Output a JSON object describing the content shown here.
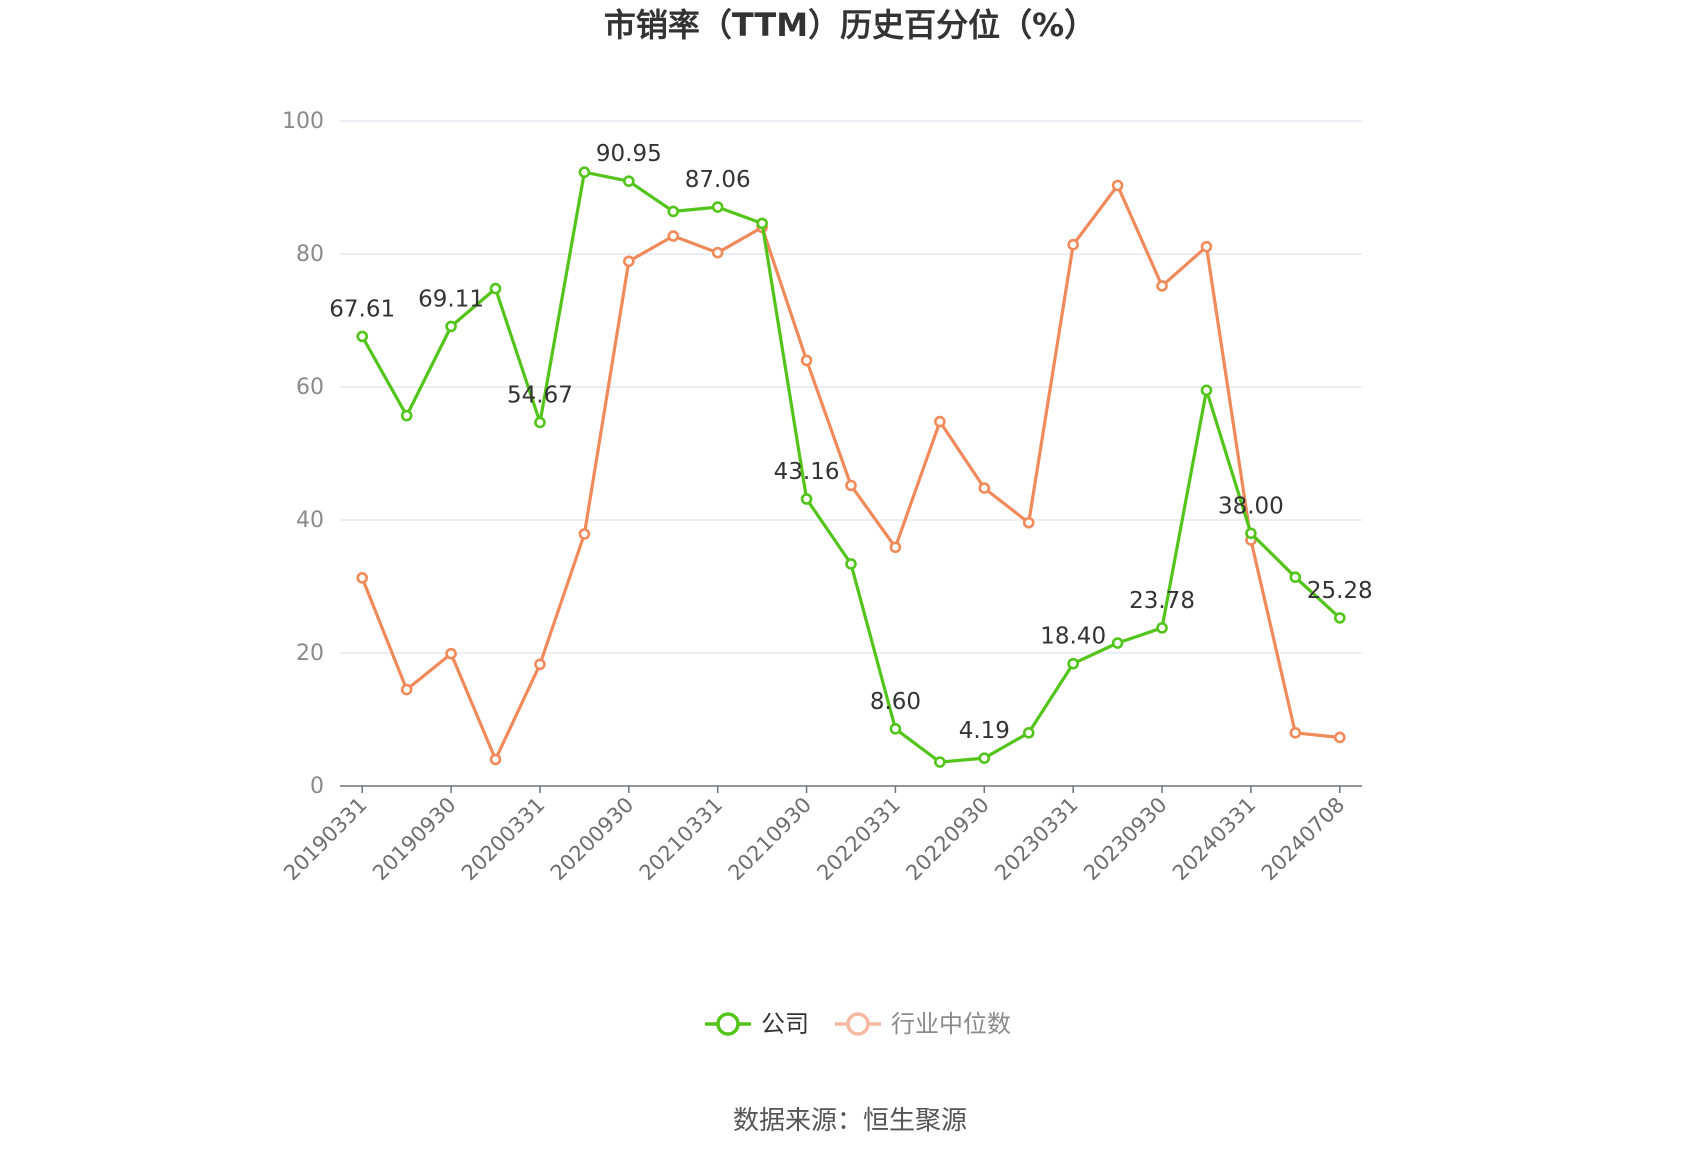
{
  "chart_data": {
    "type": "line",
    "title": "市销率（TTM）历史百分位（%）",
    "source": "数据来源：恒生聚源",
    "ylim": [
      0,
      100
    ],
    "yticks": [
      "0",
      "20",
      "40",
      "60",
      "80",
      "100"
    ],
    "xtick_labels": [
      "20190331",
      "20190930",
      "20200331",
      "20200930",
      "20210331",
      "20210930",
      "20220331",
      "20220930",
      "20230331",
      "20230930",
      "20240331",
      "20240708"
    ],
    "grid": true,
    "legend_position": "bottom-center",
    "series": [
      {
        "name": "公司",
        "color": "#52c41a",
        "values": [
          67.61,
          55.7,
          69.11,
          74.8,
          54.67,
          92.3,
          90.95,
          86.4,
          87.06,
          84.6,
          43.16,
          33.4,
          8.6,
          3.6,
          4.19,
          8.0,
          18.4,
          21.5,
          23.78,
          59.5,
          38.0,
          31.4,
          25.28
        ],
        "labels": [
          "67.61",
          "",
          "69.11",
          "",
          "54.67",
          "",
          "90.95",
          "",
          "87.06",
          "",
          "43.16",
          "",
          "8.60",
          "",
          "4.19",
          "",
          "18.40",
          "",
          "23.78",
          "",
          "38.00",
          "",
          "25.28"
        ]
      },
      {
        "name": "行业中位数",
        "color": "#f08a5a",
        "values": [
          31.3,
          14.5,
          19.9,
          4.0,
          18.3,
          37.9,
          78.9,
          82.7,
          80.2,
          84.0,
          64.0,
          45.2,
          35.9,
          54.8,
          44.8,
          39.6,
          81.4,
          90.3,
          75.2,
          81.1,
          37.0,
          8.0,
          7.3
        ]
      }
    ]
  }
}
